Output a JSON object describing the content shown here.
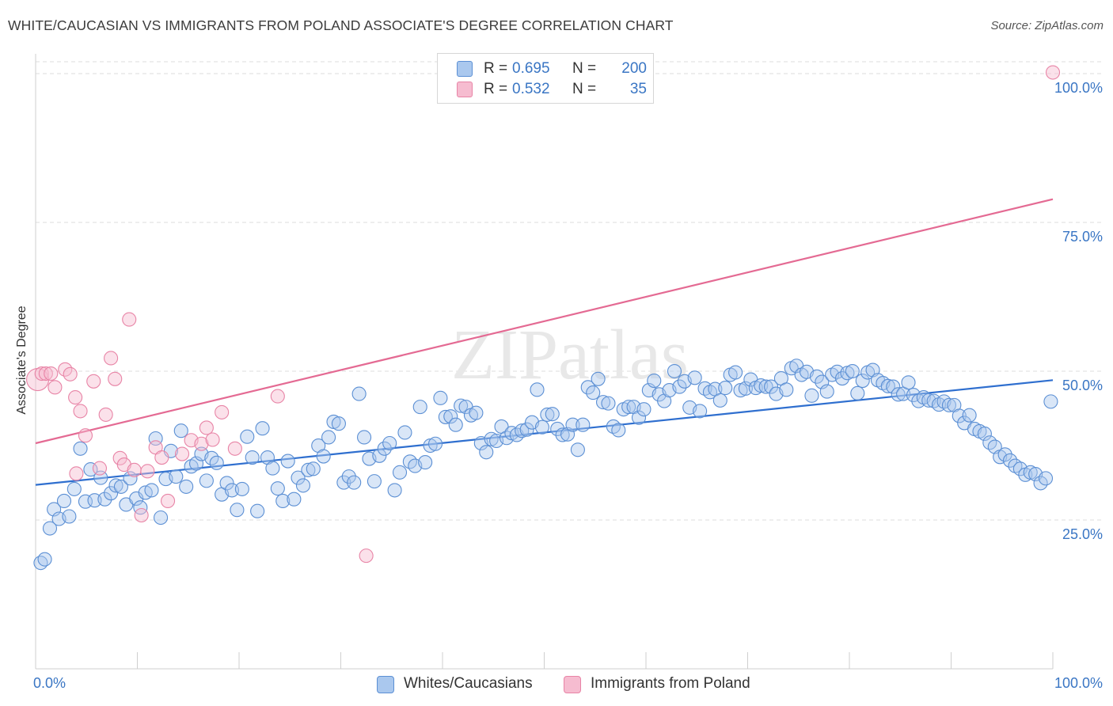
{
  "title": "WHITE/CAUCASIAN VS IMMIGRANTS FROM POLAND ASSOCIATE'S DEGREE CORRELATION CHART",
  "source": "Source: ZipAtlas.com",
  "watermark": "ZIPatlas",
  "colors": {
    "blue_fill": "#aac8ee",
    "blue_stroke": "#5b8fd4",
    "blue_line": "#2f6fcf",
    "pink_fill": "#f6bcd0",
    "pink_stroke": "#e884a6",
    "pink_line": "#e46a93",
    "tick_label": "#3a76c4",
    "grid": "#dedede"
  },
  "legend": {
    "rows": [
      {
        "r_label": "R =",
        "r_value": "0.695",
        "n_label": "N =",
        "n_value": "200"
      },
      {
        "r_label": "R =",
        "r_value": "0.532",
        "n_label": "N =",
        "n_value": "35"
      }
    ]
  },
  "bottom_legend": [
    "Whites/Caucasians",
    "Immigrants from Poland"
  ],
  "chart_data": {
    "type": "scatter",
    "title": "WHITE/CAUCASIAN VS IMMIGRANTS FROM POLAND ASSOCIATE'S DEGREE CORRELATION CHART",
    "xlabel": "",
    "ylabel": "Associate's Degree",
    "xlim": [
      0,
      100
    ],
    "ylim": [
      0,
      102
    ],
    "x_tick_labels": [
      "0.0%",
      "100.0%"
    ],
    "y_ticks": [
      25,
      50,
      75,
      100
    ],
    "y_tick_labels": [
      "25.0%",
      "50.0%",
      "75.0%",
      "100.0%"
    ],
    "grid": true,
    "legend_position": "top-center",
    "series": [
      {
        "name": "Whites/Caucasians",
        "r": 0.695,
        "n": 200,
        "trend": {
          "x": [
            0,
            100
          ],
          "y": [
            30.9,
            48.5
          ]
        },
        "points": [
          [
            0.5,
            17.8
          ],
          [
            0.9,
            18.4
          ],
          [
            1.4,
            23.6
          ],
          [
            1.8,
            26.8
          ],
          [
            2.3,
            25.2
          ],
          [
            2.8,
            28.2
          ],
          [
            3.3,
            25.6
          ],
          [
            3.8,
            30.2
          ],
          [
            4.4,
            37.0
          ],
          [
            4.9,
            28.1
          ],
          [
            5.4,
            33.5
          ],
          [
            5.8,
            28.3
          ],
          [
            6.4,
            32.1
          ],
          [
            6.8,
            28.5
          ],
          [
            7.4,
            29.5
          ],
          [
            7.9,
            30.8
          ],
          [
            8.4,
            30.6
          ],
          [
            8.9,
            27.6
          ],
          [
            9.3,
            32.0
          ],
          [
            9.9,
            28.6
          ],
          [
            10.3,
            27.1
          ],
          [
            10.8,
            29.6
          ],
          [
            11.4,
            30.0
          ],
          [
            11.8,
            38.7
          ],
          [
            12.3,
            25.4
          ],
          [
            12.8,
            31.9
          ],
          [
            13.3,
            36.6
          ],
          [
            13.8,
            32.3
          ],
          [
            14.3,
            40.0
          ],
          [
            14.8,
            30.6
          ],
          [
            15.3,
            34.0
          ],
          [
            15.8,
            34.5
          ],
          [
            16.3,
            36.1
          ],
          [
            16.8,
            31.6
          ],
          [
            17.3,
            35.4
          ],
          [
            17.8,
            34.6
          ],
          [
            18.3,
            29.3
          ],
          [
            18.8,
            31.2
          ],
          [
            19.3,
            30.0
          ],
          [
            19.8,
            26.7
          ],
          [
            20.3,
            30.2
          ],
          [
            20.8,
            39.0
          ],
          [
            21.3,
            35.5
          ],
          [
            21.8,
            26.5
          ],
          [
            22.3,
            40.4
          ],
          [
            22.8,
            35.5
          ],
          [
            23.3,
            33.7
          ],
          [
            23.8,
            30.3
          ],
          [
            24.3,
            28.2
          ],
          [
            24.8,
            34.9
          ],
          [
            25.4,
            28.5
          ],
          [
            25.8,
            32.1
          ],
          [
            26.3,
            30.8
          ],
          [
            26.8,
            33.4
          ],
          [
            27.3,
            33.6
          ],
          [
            27.8,
            37.5
          ],
          [
            28.3,
            35.7
          ],
          [
            28.8,
            38.9
          ],
          [
            29.3,
            41.5
          ],
          [
            29.8,
            41.2
          ],
          [
            30.3,
            31.3
          ],
          [
            30.8,
            32.3
          ],
          [
            31.3,
            31.3
          ],
          [
            31.8,
            46.2
          ],
          [
            32.3,
            38.9
          ],
          [
            32.8,
            35.3
          ],
          [
            33.3,
            31.5
          ],
          [
            33.8,
            35.8
          ],
          [
            34.3,
            37.0
          ],
          [
            34.8,
            37.9
          ],
          [
            35.3,
            30.0
          ],
          [
            35.8,
            33.0
          ],
          [
            36.3,
            39.7
          ],
          [
            36.8,
            34.8
          ],
          [
            37.3,
            34.1
          ],
          [
            37.8,
            44.0
          ],
          [
            38.3,
            34.7
          ],
          [
            38.8,
            37.5
          ],
          [
            39.3,
            37.8
          ],
          [
            39.8,
            45.5
          ],
          [
            40.3,
            42.3
          ],
          [
            40.8,
            42.4
          ],
          [
            41.3,
            41.0
          ],
          [
            41.8,
            44.2
          ],
          [
            42.3,
            44.0
          ],
          [
            42.8,
            42.6
          ],
          [
            43.3,
            43.0
          ],
          [
            43.8,
            37.9
          ],
          [
            44.3,
            36.4
          ],
          [
            44.8,
            38.6
          ],
          [
            45.3,
            38.3
          ],
          [
            45.8,
            40.7
          ],
          [
            46.3,
            38.8
          ],
          [
            46.8,
            39.6
          ],
          [
            47.3,
            39.3
          ],
          [
            47.8,
            40.0
          ],
          [
            48.3,
            40.2
          ],
          [
            48.8,
            41.4
          ],
          [
            49.3,
            46.9
          ],
          [
            49.8,
            40.6
          ],
          [
            50.3,
            42.7
          ],
          [
            50.8,
            42.8
          ],
          [
            51.3,
            40.3
          ],
          [
            51.8,
            39.3
          ],
          [
            52.3,
            39.4
          ],
          [
            52.8,
            41.0
          ],
          [
            53.3,
            36.8
          ],
          [
            53.8,
            41.0
          ],
          [
            54.3,
            47.3
          ],
          [
            54.8,
            46.4
          ],
          [
            55.3,
            48.7
          ],
          [
            55.8,
            44.8
          ],
          [
            56.3,
            44.6
          ],
          [
            56.8,
            40.7
          ],
          [
            57.3,
            40.1
          ],
          [
            57.8,
            43.6
          ],
          [
            58.3,
            44.0
          ],
          [
            58.8,
            44.0
          ],
          [
            59.3,
            42.2
          ],
          [
            59.8,
            43.6
          ],
          [
            60.3,
            46.8
          ],
          [
            60.8,
            48.4
          ],
          [
            61.3,
            46.1
          ],
          [
            61.8,
            45.0
          ],
          [
            62.3,
            46.8
          ],
          [
            62.8,
            50.0
          ],
          [
            63.3,
            47.4
          ],
          [
            63.8,
            48.3
          ],
          [
            64.3,
            43.9
          ],
          [
            64.8,
            48.9
          ],
          [
            65.3,
            43.3
          ],
          [
            65.8,
            47.1
          ],
          [
            66.3,
            46.5
          ],
          [
            66.8,
            47.0
          ],
          [
            67.3,
            45.1
          ],
          [
            67.8,
            47.2
          ],
          [
            68.3,
            49.4
          ],
          [
            68.8,
            49.8
          ],
          [
            69.3,
            46.8
          ],
          [
            69.8,
            47.1
          ],
          [
            70.3,
            48.6
          ],
          [
            70.8,
            47.2
          ],
          [
            71.3,
            47.6
          ],
          [
            71.8,
            47.4
          ],
          [
            72.3,
            47.4
          ],
          [
            72.8,
            46.2
          ],
          [
            73.3,
            48.8
          ],
          [
            73.8,
            46.9
          ],
          [
            74.3,
            50.5
          ],
          [
            74.8,
            50.9
          ],
          [
            75.3,
            49.4
          ],
          [
            75.8,
            49.9
          ],
          [
            76.3,
            45.9
          ],
          [
            76.8,
            49.1
          ],
          [
            77.3,
            48.2
          ],
          [
            77.8,
            46.6
          ],
          [
            78.3,
            49.4
          ],
          [
            78.8,
            49.9
          ],
          [
            79.3,
            48.8
          ],
          [
            79.8,
            49.7
          ],
          [
            80.3,
            50.0
          ],
          [
            80.8,
            46.3
          ],
          [
            81.3,
            48.4
          ],
          [
            81.8,
            49.8
          ],
          [
            82.3,
            50.2
          ],
          [
            82.8,
            48.5
          ],
          [
            83.3,
            48.0
          ],
          [
            83.8,
            47.5
          ],
          [
            84.3,
            47.4
          ],
          [
            84.8,
            46.1
          ],
          [
            85.3,
            46.2
          ],
          [
            85.8,
            48.1
          ],
          [
            86.3,
            46.0
          ],
          [
            86.8,
            45.0
          ],
          [
            87.3,
            45.6
          ],
          [
            87.8,
            45.1
          ],
          [
            88.3,
            45.0
          ],
          [
            88.8,
            44.4
          ],
          [
            89.3,
            44.9
          ],
          [
            89.8,
            44.3
          ],
          [
            90.3,
            44.3
          ],
          [
            90.8,
            42.5
          ],
          [
            91.3,
            41.3
          ],
          [
            91.8,
            42.6
          ],
          [
            92.3,
            40.3
          ],
          [
            92.8,
            39.9
          ],
          [
            93.3,
            39.5
          ],
          [
            93.8,
            38.0
          ],
          [
            94.3,
            37.3
          ],
          [
            94.8,
            35.6
          ],
          [
            95.3,
            36.0
          ],
          [
            95.8,
            35.0
          ],
          [
            96.3,
            34.1
          ],
          [
            96.8,
            33.6
          ],
          [
            97.3,
            32.6
          ],
          [
            97.8,
            33.0
          ],
          [
            98.3,
            32.7
          ],
          [
            98.8,
            31.2
          ],
          [
            99.3,
            32.0
          ],
          [
            99.8,
            44.9
          ]
        ]
      },
      {
        "name": "Immigrants from Poland",
        "r": 0.532,
        "n": 35,
        "trend": {
          "x": [
            0,
            100
          ],
          "y": [
            37.9,
            78.9
          ]
        },
        "points": [
          [
            0.2,
            48.6
          ],
          [
            0.6,
            49.6
          ],
          [
            1.0,
            49.6
          ],
          [
            1.5,
            49.6
          ],
          [
            1.9,
            47.3
          ],
          [
            2.9,
            50.3
          ],
          [
            3.4,
            49.5
          ],
          [
            3.9,
            45.6
          ],
          [
            4.4,
            43.3
          ],
          [
            4.9,
            39.2
          ],
          [
            5.7,
            48.3
          ],
          [
            6.3,
            33.7
          ],
          [
            6.9,
            42.7
          ],
          [
            7.4,
            52.2
          ],
          [
            7.8,
            48.7
          ],
          [
            8.3,
            35.4
          ],
          [
            8.7,
            34.3
          ],
          [
            9.2,
            58.7
          ],
          [
            9.7,
            33.4
          ],
          [
            10.4,
            25.8
          ],
          [
            11.0,
            33.2
          ],
          [
            11.8,
            37.2
          ],
          [
            12.4,
            35.5
          ],
          [
            13.0,
            28.2
          ],
          [
            14.4,
            36.1
          ],
          [
            15.3,
            38.4
          ],
          [
            16.3,
            37.8
          ],
          [
            16.8,
            40.5
          ],
          [
            17.4,
            38.5
          ],
          [
            18.3,
            43.1
          ],
          [
            19.6,
            37.0
          ],
          [
            23.8,
            45.8
          ],
          [
            32.5,
            19.0
          ],
          [
            4.0,
            32.8
          ],
          [
            100.0,
            100.2
          ]
        ]
      }
    ]
  }
}
